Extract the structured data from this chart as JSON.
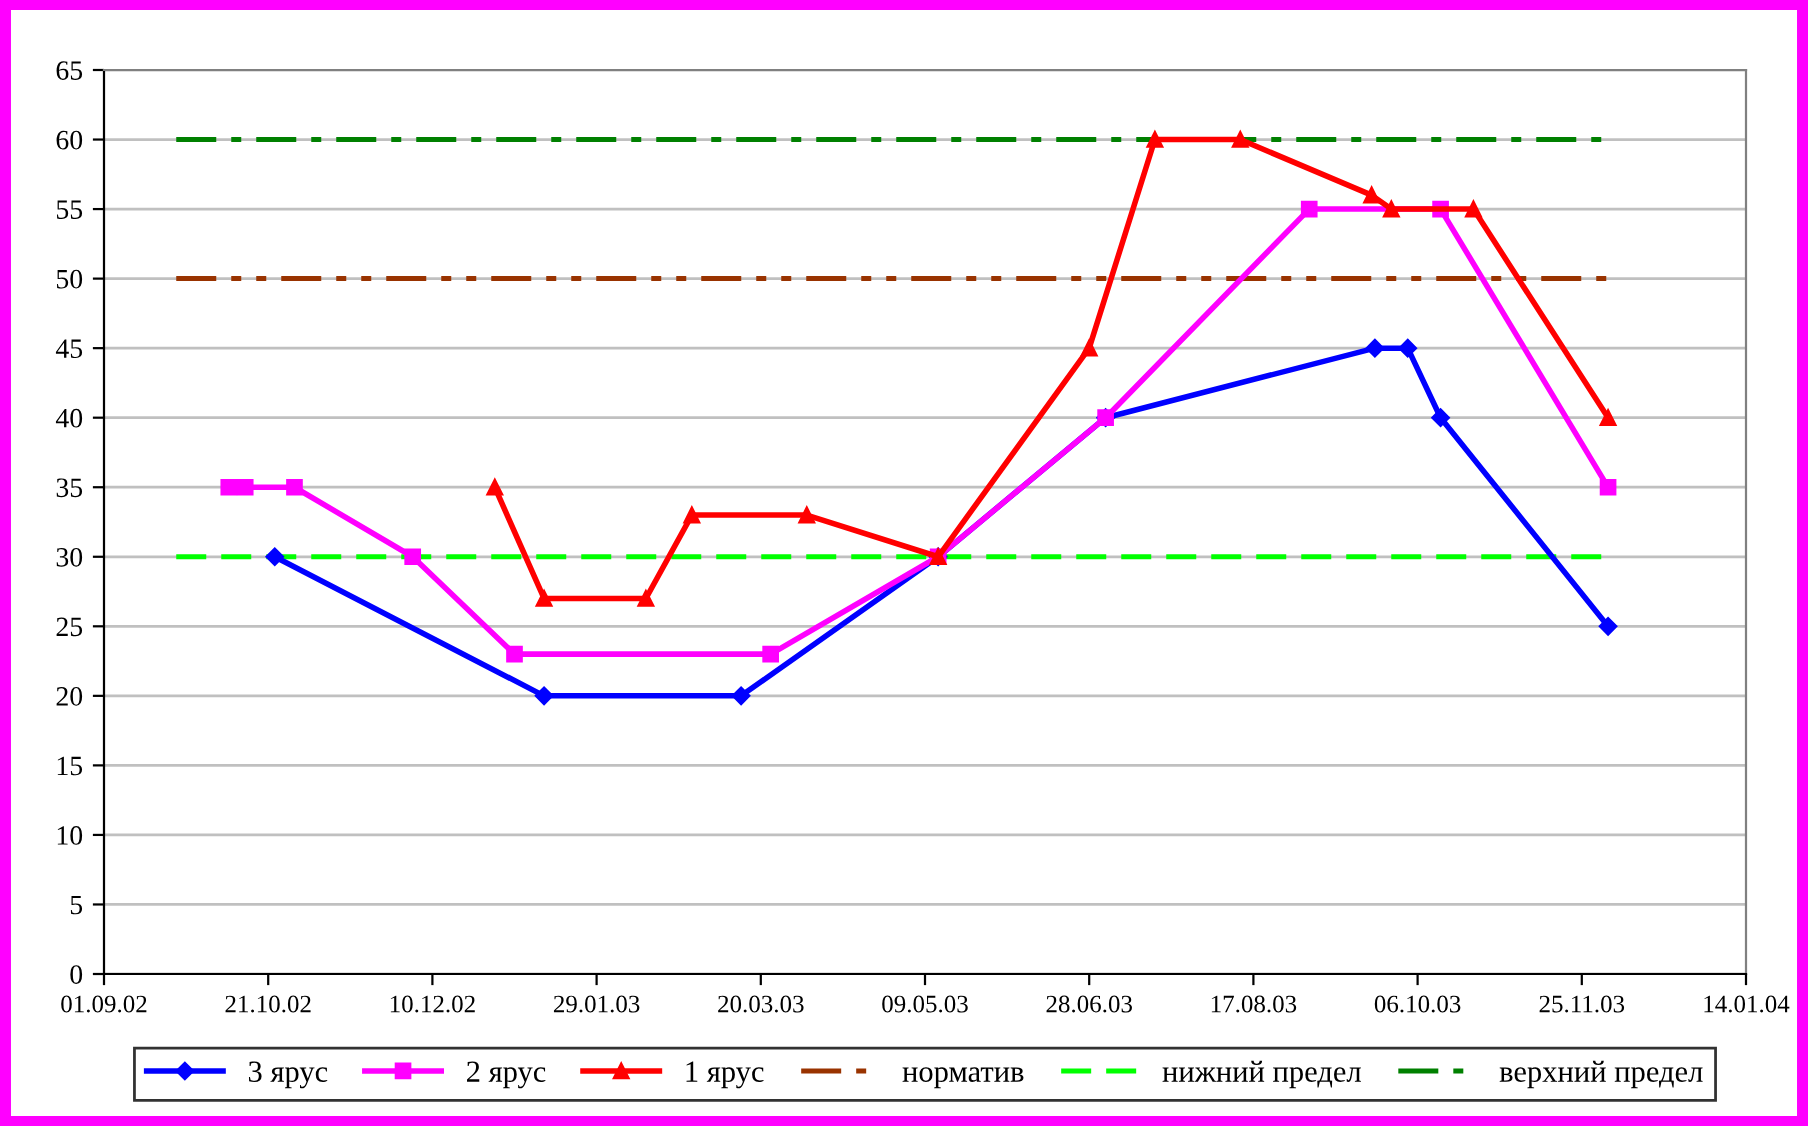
{
  "chart_data": {
    "type": "line",
    "xlim": [
      "2002-09-01",
      "2004-01-14"
    ],
    "xticks": [
      {
        "value": "2002-09-01",
        "label": "01.09.02"
      },
      {
        "value": "2002-10-21",
        "label": "21.10.02"
      },
      {
        "value": "2002-12-10",
        "label": "10.12.02"
      },
      {
        "value": "2003-01-29",
        "label": "29.01.03"
      },
      {
        "value": "2003-03-20",
        "label": "20.03.03"
      },
      {
        "value": "2003-05-09",
        "label": "09.05.03"
      },
      {
        "value": "2003-06-28",
        "label": "28.06.03"
      },
      {
        "value": "2003-08-17",
        "label": "17.08.03"
      },
      {
        "value": "2003-10-06",
        "label": "06.10.03"
      },
      {
        "value": "2003-11-25",
        "label": "25.11.03"
      },
      {
        "value": "2004-01-14",
        "label": "14.01.04"
      }
    ],
    "ylim": [
      0,
      65
    ],
    "yticks": [
      0,
      5,
      10,
      15,
      20,
      25,
      30,
      35,
      40,
      45,
      50,
      55,
      60,
      65
    ],
    "grid": "y",
    "legend": "bottom",
    "series": [
      {
        "name": "3 ярус",
        "color": "#0000ff",
        "marker": "diamond",
        "line_style": "solid",
        "x": [
          "2002-10-23",
          "2003-01-13",
          "2003-03-14",
          "2003-05-13",
          "2003-07-03",
          "2003-09-23",
          "2003-10-03",
          "2003-10-13",
          "2003-12-03"
        ],
        "values": [
          30,
          20,
          20,
          30,
          40,
          45,
          45,
          40,
          25
        ]
      },
      {
        "name": "2 ярус",
        "color": "#ff00ff",
        "marker": "square",
        "line_style": "solid",
        "x": [
          "2002-10-09",
          "2002-10-14",
          "2002-10-29",
          "2002-12-04",
          "2003-01-04",
          "2003-03-23",
          "2003-05-13",
          "2003-07-03",
          "2003-09-03",
          "2003-10-13",
          "2003-12-03"
        ],
        "values": [
          35,
          35,
          35,
          30,
          23,
          23,
          30,
          40,
          55,
          55,
          35
        ]
      },
      {
        "name": "1 ярус",
        "color": "#ff0000",
        "marker": "triangle",
        "line_style": "solid",
        "x": [
          "2002-12-29",
          "2003-01-13",
          "2003-02-13",
          "2003-02-27",
          "2003-04-03",
          "2003-05-13",
          "2003-06-28",
          "2003-07-18",
          "2003-08-13",
          "2003-09-22",
          "2003-09-28",
          "2003-10-23",
          "2003-12-03"
        ],
        "values": [
          35,
          27,
          27,
          33,
          33,
          30,
          45,
          60,
          60,
          56,
          55,
          55,
          40
        ]
      },
      {
        "name": "норматив",
        "color": "#993300",
        "marker": "none",
        "line_style": "dashdotdot",
        "x": [
          "2002-09-23",
          "2003-12-03"
        ],
        "values": [
          50,
          50
        ]
      },
      {
        "name": "нижний предел",
        "color": "#00ff00",
        "marker": "none",
        "line_style": "dashed",
        "x": [
          "2002-09-23",
          "2003-12-03"
        ],
        "values": [
          30,
          30
        ]
      },
      {
        "name": "верхний предел",
        "color": "#008000",
        "marker": "none",
        "line_style": "dashdot",
        "x": [
          "2002-09-23",
          "2003-12-03"
        ],
        "values": [
          60,
          60
        ]
      }
    ]
  }
}
